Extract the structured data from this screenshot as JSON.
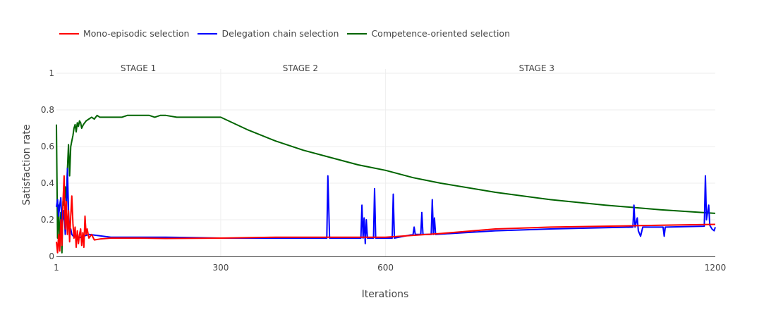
{
  "chart_data": {
    "type": "line",
    "title": "",
    "xlabel": "Iterations",
    "ylabel": "Satisfaction rate",
    "xlim": [
      1,
      1200
    ],
    "ylim": [
      0,
      1
    ],
    "x_ticks": [
      1,
      300,
      600,
      1200
    ],
    "y_ticks": [
      0,
      0.2,
      0.4,
      0.6,
      0.8,
      1
    ],
    "grid": true,
    "legend_position": "top-left",
    "stage_dividers": [
      300,
      600
    ],
    "stages": [
      {
        "label": "STAGE 1",
        "x": 150
      },
      {
        "label": "STAGE 2",
        "x": 445
      },
      {
        "label": "STAGE 3",
        "x": 875
      }
    ],
    "series": [
      {
        "name": "Mono-episodic selection",
        "color": "#ff0000",
        "points": [
          [
            1,
            0.08
          ],
          [
            3,
            0.02
          ],
          [
            5,
            0.12
          ],
          [
            7,
            0.03
          ],
          [
            9,
            0.2
          ],
          [
            11,
            0.06
          ],
          [
            13,
            0.3
          ],
          [
            15,
            0.44
          ],
          [
            17,
            0.15
          ],
          [
            19,
            0.3
          ],
          [
            21,
            0.12
          ],
          [
            23,
            0.25
          ],
          [
            25,
            0.08
          ],
          [
            27,
            0.22
          ],
          [
            29,
            0.33
          ],
          [
            31,
            0.18
          ],
          [
            33,
            0.1
          ],
          [
            35,
            0.16
          ],
          [
            37,
            0.05
          ],
          [
            39,
            0.14
          ],
          [
            41,
            0.07
          ],
          [
            43,
            0.12
          ],
          [
            45,
            0.15
          ],
          [
            47,
            0.06
          ],
          [
            49,
            0.13
          ],
          [
            51,
            0.05
          ],
          [
            53,
            0.22
          ],
          [
            55,
            0.12
          ],
          [
            57,
            0.15
          ],
          [
            60,
            0.1
          ],
          [
            65,
            0.12
          ],
          [
            70,
            0.09
          ],
          [
            80,
            0.095
          ],
          [
            100,
            0.1
          ],
          [
            150,
            0.1
          ],
          [
            200,
            0.098
          ],
          [
            300,
            0.1
          ],
          [
            400,
            0.105
          ],
          [
            500,
            0.105
          ],
          [
            600,
            0.105
          ],
          [
            700,
            0.125
          ],
          [
            800,
            0.15
          ],
          [
            900,
            0.16
          ],
          [
            1000,
            0.165
          ],
          [
            1100,
            0.17
          ],
          [
            1200,
            0.175
          ]
        ]
      },
      {
        "name": "Delegation chain selection",
        "color": "#0000ff",
        "points": [
          [
            1,
            0.27
          ],
          [
            3,
            0.31
          ],
          [
            5,
            0.22
          ],
          [
            7,
            0.28
          ],
          [
            9,
            0.32
          ],
          [
            11,
            0.18
          ],
          [
            13,
            0.2
          ],
          [
            15,
            0.25
          ],
          [
            17,
            0.12
          ],
          [
            19,
            0.22
          ],
          [
            21,
            0.48
          ],
          [
            23,
            0.25
          ],
          [
            25,
            0.14
          ],
          [
            27,
            0.15
          ],
          [
            29,
            0.12
          ],
          [
            32,
            0.11
          ],
          [
            40,
            0.1
          ],
          [
            60,
            0.12
          ],
          [
            100,
            0.105
          ],
          [
            150,
            0.105
          ],
          [
            200,
            0.105
          ],
          [
            300,
            0.1
          ],
          [
            400,
            0.1
          ],
          [
            493,
            0.1
          ],
          [
            495,
            0.44
          ],
          [
            498,
            0.1
          ],
          [
            555,
            0.1
          ],
          [
            557,
            0.28
          ],
          [
            559,
            0.1
          ],
          [
            561,
            0.21
          ],
          [
            563,
            0.07
          ],
          [
            565,
            0.2
          ],
          [
            567,
            0.1
          ],
          [
            578,
            0.1
          ],
          [
            580,
            0.37
          ],
          [
            582,
            0.1
          ],
          [
            612,
            0.1
          ],
          [
            614,
            0.34
          ],
          [
            616,
            0.1
          ],
          [
            650,
            0.12
          ],
          [
            652,
            0.16
          ],
          [
            654,
            0.12
          ],
          [
            664,
            0.12
          ],
          [
            666,
            0.24
          ],
          [
            668,
            0.12
          ],
          [
            683,
            0.12
          ],
          [
            685,
            0.31
          ],
          [
            687,
            0.12
          ],
          [
            689,
            0.21
          ],
          [
            691,
            0.12
          ],
          [
            800,
            0.14
          ],
          [
            900,
            0.15
          ],
          [
            1050,
            0.16
          ],
          [
            1052,
            0.28
          ],
          [
            1054,
            0.16
          ],
          [
            1058,
            0.21
          ],
          [
            1060,
            0.14
          ],
          [
            1064,
            0.11
          ],
          [
            1068,
            0.16
          ],
          [
            1105,
            0.16
          ],
          [
            1107,
            0.11
          ],
          [
            1109,
            0.16
          ],
          [
            1180,
            0.165
          ],
          [
            1182,
            0.44
          ],
          [
            1184,
            0.2
          ],
          [
            1186,
            0.24
          ],
          [
            1188,
            0.28
          ],
          [
            1190,
            0.17
          ],
          [
            1194,
            0.15
          ],
          [
            1198,
            0.14
          ],
          [
            1200,
            0.16
          ]
        ]
      },
      {
        "name": "Competence-oriented selection",
        "color": "#006400",
        "points": [
          [
            1,
            0.72
          ],
          [
            3,
            0.1
          ],
          [
            5,
            0.28
          ],
          [
            7,
            0.05
          ],
          [
            9,
            0.24
          ],
          [
            11,
            0.02
          ],
          [
            13,
            0.3
          ],
          [
            15,
            0.28
          ],
          [
            17,
            0.38
          ],
          [
            19,
            0.3
          ],
          [
            21,
            0.48
          ],
          [
            23,
            0.61
          ],
          [
            25,
            0.44
          ],
          [
            27,
            0.6
          ],
          [
            29,
            0.63
          ],
          [
            31,
            0.66
          ],
          [
            33,
            0.7
          ],
          [
            35,
            0.72
          ],
          [
            37,
            0.68
          ],
          [
            39,
            0.73
          ],
          [
            41,
            0.71
          ],
          [
            43,
            0.74
          ],
          [
            45,
            0.73
          ],
          [
            47,
            0.7
          ],
          [
            50,
            0.72
          ],
          [
            55,
            0.74
          ],
          [
            60,
            0.75
          ],
          [
            65,
            0.76
          ],
          [
            70,
            0.75
          ],
          [
            75,
            0.77
          ],
          [
            80,
            0.76
          ],
          [
            90,
            0.76
          ],
          [
            100,
            0.76
          ],
          [
            110,
            0.76
          ],
          [
            120,
            0.76
          ],
          [
            130,
            0.77
          ],
          [
            140,
            0.77
          ],
          [
            150,
            0.77
          ],
          [
            160,
            0.77
          ],
          [
            170,
            0.77
          ],
          [
            180,
            0.76
          ],
          [
            190,
            0.77
          ],
          [
            200,
            0.77
          ],
          [
            220,
            0.76
          ],
          [
            250,
            0.76
          ],
          [
            280,
            0.76
          ],
          [
            300,
            0.76
          ],
          [
            350,
            0.69
          ],
          [
            400,
            0.63
          ],
          [
            450,
            0.58
          ],
          [
            500,
            0.54
          ],
          [
            550,
            0.5
          ],
          [
            600,
            0.47
          ],
          [
            650,
            0.43
          ],
          [
            700,
            0.4
          ],
          [
            800,
            0.35
          ],
          [
            900,
            0.31
          ],
          [
            1000,
            0.28
          ],
          [
            1100,
            0.255
          ],
          [
            1200,
            0.235
          ]
        ]
      }
    ]
  }
}
